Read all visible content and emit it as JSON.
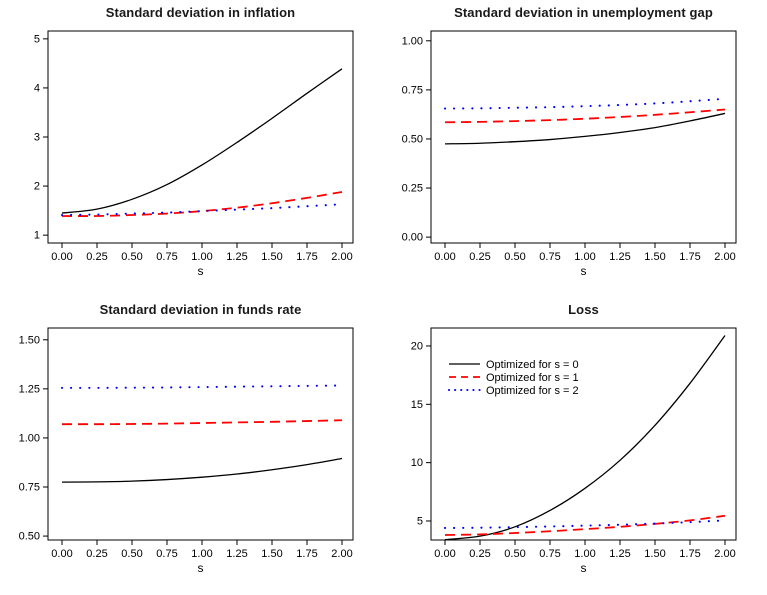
{
  "figure": {
    "background": "#ffffff",
    "description": "Four-panel line figure comparing policies optimized for different s values"
  },
  "colors": {
    "series_s0": "#000000",
    "series_s1": "#ff0000",
    "series_s2": "#0000ff",
    "axis": "#000000",
    "title_text": "#1a1a1a"
  },
  "axis": {
    "x": {
      "label": "s",
      "values": [
        0,
        0.25,
        0.5,
        0.75,
        1.0,
        1.25,
        1.5,
        1.75,
        2.0
      ],
      "labels": [
        "0.00",
        "0.25",
        "0.50",
        "0.75",
        "1.00",
        "1.25",
        "1.50",
        "1.75",
        "2.00"
      ]
    }
  },
  "legend": {
    "position": "top-left-inside-panel-4",
    "items": [
      {
        "label": "Optimized for s = 0",
        "color": "#000000",
        "style": "solid"
      },
      {
        "label": "Optimized for s = 1",
        "color": "#ff0000",
        "style": "dashed"
      },
      {
        "label": "Optimized for s = 2",
        "color": "#0000ff",
        "style": "dotted"
      }
    ]
  },
  "chart_data": [
    {
      "type": "line",
      "title": "Standard deviation in inflation",
      "xlabel": "s",
      "ylabel": "",
      "ylim": [
        0.84,
        5.16
      ],
      "grid": false,
      "yticks": {
        "values": [
          1,
          2,
          3,
          4,
          5
        ],
        "labels": [
          "1",
          "2",
          "3",
          "4",
          "5"
        ]
      },
      "x": [
        0,
        0.25,
        0.5,
        0.75,
        1.0,
        1.25,
        1.5,
        1.75,
        2.0
      ],
      "series": [
        {
          "name": "Optimized for s = 0",
          "color": "#000000",
          "style": "solid",
          "values": [
            1.45,
            1.53,
            1.73,
            2.03,
            2.43,
            2.89,
            3.38,
            3.89,
            4.39
          ]
        },
        {
          "name": "Optimized for s = 1",
          "color": "#ff0000",
          "style": "dashed",
          "values": [
            1.39,
            1.39,
            1.41,
            1.44,
            1.49,
            1.56,
            1.65,
            1.76,
            1.88
          ]
        },
        {
          "name": "Optimized for s = 2",
          "color": "#0000ff",
          "style": "dotted",
          "values": [
            1.41,
            1.42,
            1.44,
            1.46,
            1.49,
            1.52,
            1.55,
            1.59,
            1.63
          ]
        }
      ]
    },
    {
      "type": "line",
      "title": "Standard deviation in unemployment gap",
      "xlabel": "s",
      "ylabel": "",
      "ylim": [
        -0.03,
        1.05
      ],
      "grid": false,
      "yticks": {
        "values": [
          0,
          0.25,
          0.5,
          0.75,
          1.0
        ],
        "labels": [
          "0.00",
          "0.25",
          "0.50",
          "0.75",
          "1.00"
        ]
      },
      "x": [
        0,
        0.25,
        0.5,
        0.75,
        1.0,
        1.25,
        1.5,
        1.75,
        2.0
      ],
      "series": [
        {
          "name": "Optimized for s = 0",
          "color": "#000000",
          "style": "solid",
          "values": [
            0.475,
            0.478,
            0.486,
            0.497,
            0.513,
            0.533,
            0.558,
            0.592,
            0.63
          ]
        },
        {
          "name": "Optimized for s = 1",
          "color": "#ff0000",
          "style": "dashed",
          "values": [
            0.585,
            0.587,
            0.591,
            0.596,
            0.603,
            0.612,
            0.623,
            0.636,
            0.65
          ]
        },
        {
          "name": "Optimized for s = 2",
          "color": "#0000ff",
          "style": "dotted",
          "values": [
            0.655,
            0.656,
            0.659,
            0.662,
            0.667,
            0.673,
            0.681,
            0.692,
            0.705
          ]
        }
      ]
    },
    {
      "type": "line",
      "title": "Standard deviation in funds rate",
      "xlabel": "s",
      "ylabel": "",
      "ylim": [
        0.48,
        1.56
      ],
      "grid": false,
      "yticks": {
        "values": [
          0.5,
          0.75,
          1.0,
          1.25,
          1.5
        ],
        "labels": [
          "0.50",
          "0.75",
          "1.00",
          "1.25",
          "1.50"
        ]
      },
      "x": [
        0,
        0.25,
        0.5,
        0.75,
        1.0,
        1.25,
        1.5,
        1.75,
        2.0
      ],
      "series": [
        {
          "name": "Optimized for s = 0",
          "color": "#000000",
          "style": "solid",
          "values": [
            0.775,
            0.776,
            0.78,
            0.788,
            0.8,
            0.816,
            0.838,
            0.864,
            0.895
          ]
        },
        {
          "name": "Optimized for s = 1",
          "color": "#ff0000",
          "style": "dashed",
          "values": [
            1.07,
            1.07,
            1.071,
            1.073,
            1.076,
            1.079,
            1.082,
            1.086,
            1.09
          ]
        },
        {
          "name": "Optimized for s = 2",
          "color": "#0000ff",
          "style": "dotted",
          "values": [
            1.255,
            1.255,
            1.256,
            1.257,
            1.259,
            1.261,
            1.263,
            1.265,
            1.267
          ]
        }
      ]
    },
    {
      "type": "line",
      "title": "Loss",
      "xlabel": "s",
      "ylabel": "",
      "ylim": [
        3.37,
        21.54
      ],
      "grid": false,
      "show_legend": true,
      "yticks": {
        "values": [
          5,
          10,
          15,
          20
        ],
        "labels": [
          "5",
          "10",
          "15",
          "20"
        ]
      },
      "x": [
        0,
        0.25,
        0.5,
        0.75,
        1.0,
        1.25,
        1.5,
        1.75,
        2.0
      ],
      "series": [
        {
          "name": "Optimized for s = 0",
          "color": "#000000",
          "style": "solid",
          "values": [
            3.4,
            3.7,
            4.5,
            5.9,
            7.8,
            10.2,
            13.2,
            16.8,
            20.9
          ]
        },
        {
          "name": "Optimized for s = 1",
          "color": "#ff0000",
          "style": "dashed",
          "values": [
            3.8,
            3.85,
            3.97,
            4.12,
            4.3,
            4.5,
            4.75,
            5.05,
            5.45
          ]
        },
        {
          "name": "Optimized for s = 2",
          "color": "#0000ff",
          "style": "dotted",
          "values": [
            4.4,
            4.42,
            4.47,
            4.53,
            4.6,
            4.68,
            4.78,
            4.9,
            5.05
          ]
        }
      ]
    }
  ]
}
